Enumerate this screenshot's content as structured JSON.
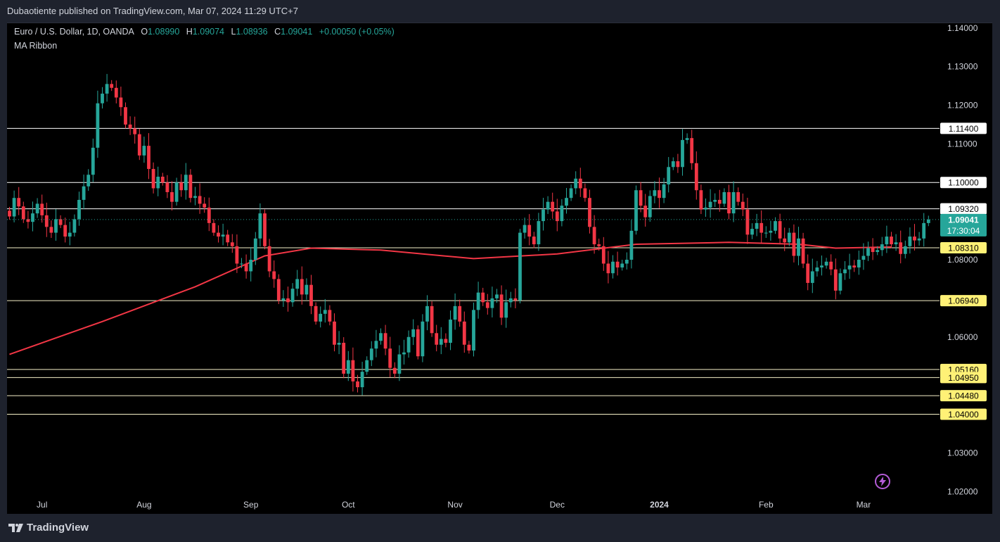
{
  "header": {
    "publisher_line": "Dubaotiente published on TradingView.com, Mar 07, 2024 11:29 UTC+7"
  },
  "legend": {
    "symbol": "Euro / U.S. Dollar, 1D, OANDA",
    "open_key": "O",
    "open": "1.08990",
    "high_key": "H",
    "high": "1.09074",
    "low_key": "L",
    "low": "1.08936",
    "close_key": "C",
    "close": "1.09041",
    "change": "+0.00050 (+0.05%)",
    "indicator": "MA Ribbon"
  },
  "footer": {
    "brand": "TradingView"
  },
  "icons": {
    "brand": "tradingview-logo-icon",
    "lightning": "lightning-icon"
  },
  "colors": {
    "up": "#26a69a",
    "down": "#f23645",
    "ma": "#f23645",
    "level_line": "#ffffff",
    "label_white": "#ffffff",
    "label_yellow": "#fff176",
    "current_label": "#26a69a",
    "background": "#000000"
  },
  "chart_data": {
    "type": "candlestick",
    "symbol": "EURUSD",
    "y_axis": {
      "ticks": [
        "1.14000",
        "1.13000",
        "1.12000",
        "1.11000",
        "1.10000",
        "1.08000",
        "1.06000",
        "1.03000",
        "1.02000"
      ],
      "range": [
        1.0195,
        1.1405
      ]
    },
    "x_axis": {
      "labels": [
        {
          "text": "Jul",
          "idx": 7
        },
        {
          "text": "Aug",
          "idx": 29
        },
        {
          "text": "Sep",
          "idx": 52
        },
        {
          "text": "Oct",
          "idx": 73
        },
        {
          "text": "Nov",
          "idx": 96
        },
        {
          "text": "Dec",
          "idx": 118
        },
        {
          "text": "2024",
          "idx": 140,
          "bold": true
        },
        {
          "text": "Feb",
          "idx": 163
        },
        {
          "text": "Mar",
          "idx": 184
        }
      ]
    },
    "levels": [
      {
        "price": 1.114,
        "label": "1.11400",
        "style": "white"
      },
      {
        "price": 1.1,
        "label": "1.10000",
        "style": "white"
      },
      {
        "price": 1.0932,
        "label": "1.09320",
        "style": "white"
      },
      {
        "price": 1.0831,
        "label": "1.08310",
        "style": "yellow"
      },
      {
        "price": 1.0694,
        "label": "1.06940",
        "style": "yellow"
      },
      {
        "price": 1.0516,
        "label": "1.05160",
        "style": "yellow"
      },
      {
        "price": 1.0495,
        "label": "1.04950",
        "style": "yellow"
      },
      {
        "price": 1.0448,
        "label": "1.04480",
        "style": "yellow"
      },
      {
        "price": 1.04,
        "label": "1.04000",
        "style": "yellow"
      }
    ],
    "current_price": {
      "price": 1.09041,
      "label": "1.09041",
      "countdown": "17:30:04"
    },
    "closes": [
      1.0912,
      1.096,
      1.0938,
      1.0905,
      1.0898,
      1.092,
      1.0945,
      1.0915,
      1.0885,
      1.087,
      1.0905,
      1.089,
      1.086,
      1.087,
      1.0905,
      1.0955,
      1.099,
      1.102,
      1.109,
      1.1205,
      1.123,
      1.1255,
      1.1245,
      1.122,
      1.1195,
      1.115,
      1.114,
      1.1125,
      1.107,
      1.1095,
      1.1035,
      1.0985,
      1.1015,
      1.1,
      1.0975,
      1.095,
      1.1,
      1.098,
      1.102,
      1.096,
      1.0965,
      1.0945,
      1.0935,
      1.0895,
      1.087,
      1.086,
      1.0865,
      1.0845,
      1.0835,
      1.079,
      1.079,
      1.077,
      1.08,
      1.0855,
      1.092,
      1.0835,
      1.077,
      1.075,
      1.0695,
      1.07,
      1.069,
      1.0725,
      1.075,
      1.071,
      1.0735,
      1.068,
      1.064,
      1.066,
      1.067,
      1.064,
      1.058,
      1.0585,
      1.0505,
      1.054,
      1.0485,
      1.047,
      1.051,
      1.054,
      1.057,
      1.059,
      1.061,
      1.057,
      1.052,
      1.0505,
      1.0555,
      1.056,
      1.06,
      1.062,
      1.055,
      1.064,
      1.068,
      1.061,
      1.058,
      1.0595,
      1.0585,
      1.0645,
      1.068,
      1.064,
      1.058,
      1.0565,
      1.067,
      1.0715,
      1.069,
      1.0675,
      1.07,
      1.071,
      1.065,
      1.069,
      1.07,
      1.0695,
      1.087,
      1.089,
      1.086,
      1.084,
      1.09,
      1.093,
      1.095,
      1.0925,
      1.09,
      1.094,
      1.096,
      1.0985,
      1.101,
      1.0985,
      1.096,
      1.0885,
      1.084,
      1.0835,
      1.079,
      1.0765,
      1.0795,
      1.078,
      1.079,
      1.08,
      1.0875,
      1.098,
      1.094,
      1.091,
      1.0965,
      1.098,
      1.096,
      1.0995,
      1.104,
      1.1055,
      1.104,
      1.111,
      1.1115,
      1.105,
      1.098,
      1.093,
      1.0935,
      1.095,
      1.0955,
      1.0945,
      1.0975,
      1.092,
      1.0975,
      1.095,
      1.093,
      1.0865,
      1.088,
      1.0895,
      1.087,
      1.087,
      1.0875,
      1.09,
      1.0855,
      1.0845,
      1.087,
      1.081,
      1.0855,
      1.079,
      1.074,
      1.077,
      1.078,
      1.0785,
      1.0795,
      1.0775,
      1.072,
      1.0765,
      1.0775,
      1.0785,
      1.078,
      1.08,
      1.081,
      1.083,
      1.082,
      1.0825,
      1.084,
      1.086,
      1.084,
      1.0845,
      1.0815,
      1.0835,
      1.086,
      1.085,
      1.0855,
      1.0895,
      1.0904
    ],
    "ma": [
      {
        "idx": 0,
        "v": 1.0555
      },
      {
        "idx": 20,
        "v": 1.064
      },
      {
        "idx": 40,
        "v": 1.073
      },
      {
        "idx": 55,
        "v": 1.081
      },
      {
        "idx": 65,
        "v": 1.083
      },
      {
        "idx": 80,
        "v": 1.0825
      },
      {
        "idx": 100,
        "v": 1.0803
      },
      {
        "idx": 118,
        "v": 1.0815
      },
      {
        "idx": 135,
        "v": 1.084
      },
      {
        "idx": 155,
        "v": 1.0845
      },
      {
        "idx": 170,
        "v": 1.084
      },
      {
        "idx": 178,
        "v": 1.083
      },
      {
        "idx": 190,
        "v": 1.0833
      }
    ]
  }
}
